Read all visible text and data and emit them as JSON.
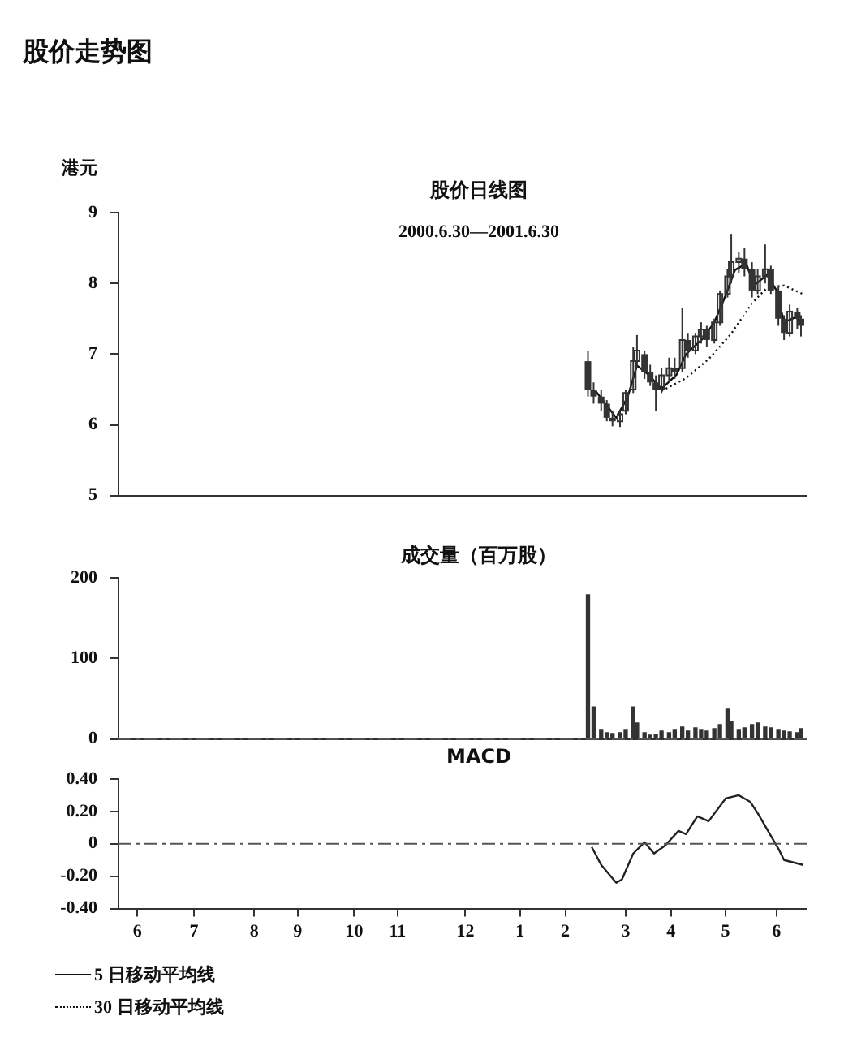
{
  "chart_data": [
    {
      "type": "candlestick",
      "title": "股价日线图",
      "subtitle": "2000.6.30—2001.6.30",
      "ylabel": "港元",
      "annotations": [
        "股价走势图"
      ],
      "color": "#333333",
      "marker": "none",
      "legend": "bottom",
      "tick_labels": "y",
      "xlim": [
        "2000-06-30",
        "2001-06-30"
      ],
      "ylim": [
        5,
        9
      ],
      "yticks": [
        5,
        6,
        7,
        8,
        9
      ],
      "x": [
        "2001-03-06",
        "2001-03-09",
        "2001-03-13",
        "2001-03-16",
        "2001-03-19",
        "2001-03-23",
        "2001-03-26",
        "2001-03-30",
        "2001-04-01",
        "2001-04-05",
        "2001-04-08",
        "2001-04-11",
        "2001-04-14",
        "2001-04-18",
        "2001-04-21",
        "2001-04-25",
        "2001-04-28",
        "2001-05-02",
        "2001-05-05",
        "2001-05-08",
        "2001-05-12",
        "2001-05-15",
        "2001-05-19",
        "2001-05-21",
        "2001-05-25",
        "2001-05-28",
        "2001-06-01",
        "2001-06-04",
        "2001-06-08",
        "2001-06-11",
        "2001-06-15",
        "2001-06-18",
        "2001-06-21",
        "2001-06-25",
        "2001-06-27"
      ],
      "ohlc": [
        [
          6.9,
          7.05,
          6.4,
          6.5
        ],
        [
          6.5,
          6.6,
          6.3,
          6.4
        ],
        [
          6.4,
          6.5,
          6.2,
          6.3
        ],
        [
          6.3,
          6.35,
          6.05,
          6.1
        ],
        [
          6.1,
          6.2,
          5.98,
          6.05
        ],
        [
          6.05,
          6.2,
          5.97,
          6.15
        ],
        [
          6.2,
          6.5,
          6.15,
          6.45
        ],
        [
          6.5,
          7.1,
          6.45,
          6.9
        ],
        [
          6.9,
          7.27,
          6.8,
          7.05
        ],
        [
          7.0,
          7.05,
          6.65,
          6.75
        ],
        [
          6.75,
          6.85,
          6.55,
          6.6
        ],
        [
          6.6,
          6.7,
          6.2,
          6.5
        ],
        [
          6.5,
          6.8,
          6.45,
          6.7
        ],
        [
          6.7,
          6.95,
          6.6,
          6.8
        ],
        [
          6.8,
          6.95,
          6.65,
          6.75
        ],
        [
          6.8,
          7.65,
          6.75,
          7.2
        ],
        [
          7.2,
          7.3,
          6.95,
          7.05
        ],
        [
          7.05,
          7.3,
          7.0,
          7.25
        ],
        [
          7.25,
          7.45,
          7.15,
          7.35
        ],
        [
          7.35,
          7.4,
          7.1,
          7.2
        ],
        [
          7.2,
          7.5,
          7.15,
          7.45
        ],
        [
          7.45,
          7.9,
          7.4,
          7.85
        ],
        [
          7.85,
          8.2,
          7.8,
          8.1
        ],
        [
          8.1,
          8.7,
          8.0,
          8.3
        ],
        [
          8.3,
          8.45,
          8.15,
          8.35
        ],
        [
          8.35,
          8.5,
          8.1,
          8.2
        ],
        [
          8.2,
          8.3,
          7.8,
          7.9
        ],
        [
          7.9,
          8.2,
          7.85,
          8.1
        ],
        [
          8.1,
          8.55,
          8.0,
          8.2
        ],
        [
          8.2,
          8.25,
          7.85,
          7.9
        ],
        [
          7.9,
          7.95,
          7.4,
          7.5
        ],
        [
          7.5,
          7.55,
          7.2,
          7.3
        ],
        [
          7.3,
          7.7,
          7.25,
          7.6
        ],
        [
          7.6,
          7.65,
          7.35,
          7.5
        ],
        [
          7.5,
          7.55,
          7.25,
          7.4
        ]
      ],
      "series": [
        {
          "name": "5 日移动平均线",
          "type": "line",
          "color": "#111111",
          "line_style": "solid",
          "x": [
            "2001-03-10",
            "2001-03-21",
            "2001-03-27",
            "2001-04-01",
            "2001-04-07",
            "2001-04-14",
            "2001-04-22",
            "2001-04-27",
            "2001-05-06",
            "2001-05-12",
            "2001-05-18",
            "2001-05-23",
            "2001-05-29",
            "2001-06-02",
            "2001-06-09",
            "2001-06-14",
            "2001-06-18",
            "2001-06-24",
            "2001-06-28"
          ],
          "values": [
            6.48,
            6.1,
            6.39,
            6.84,
            6.71,
            6.51,
            6.71,
            7.0,
            7.22,
            7.45,
            7.83,
            8.19,
            8.28,
            7.97,
            8.12,
            7.9,
            7.45,
            7.52,
            7.45
          ]
        },
        {
          "name": "30 日移动平均线",
          "type": "line",
          "color": "#111111",
          "line_style": "dotted",
          "x": [
            "2001-04-14",
            "2001-04-27",
            "2001-05-09",
            "2001-05-21",
            "2001-06-01",
            "2001-06-09",
            "2001-06-18",
            "2001-06-28"
          ],
          "values": [
            6.48,
            6.66,
            6.93,
            7.29,
            7.72,
            7.94,
            7.97,
            7.85
          ]
        }
      ]
    },
    {
      "type": "bar",
      "title": "成交量（百万股）",
      "color": "#333333",
      "tick_labels": "y",
      "xlim": [
        "2000-06-30",
        "2001-06-30"
      ],
      "ylim": [
        0,
        200
      ],
      "yticks": [
        0,
        100,
        200
      ],
      "x": [
        "2001-03-06",
        "2001-03-09",
        "2001-03-13",
        "2001-03-16",
        "2001-03-19",
        "2001-03-23",
        "2001-03-26",
        "2001-03-30",
        "2001-04-01",
        "2001-04-05",
        "2001-04-08",
        "2001-04-11",
        "2001-04-14",
        "2001-04-18",
        "2001-04-21",
        "2001-04-25",
        "2001-04-28",
        "2001-05-02",
        "2001-05-05",
        "2001-05-08",
        "2001-05-12",
        "2001-05-15",
        "2001-05-19",
        "2001-05-21",
        "2001-05-25",
        "2001-05-28",
        "2001-06-01",
        "2001-06-04",
        "2001-06-08",
        "2001-06-11",
        "2001-06-15",
        "2001-06-18",
        "2001-06-21",
        "2001-06-25",
        "2001-06-27"
      ],
      "values": [
        179,
        40,
        12,
        8,
        7,
        8,
        12,
        40,
        20,
        8,
        5,
        6,
        10,
        8,
        12,
        15,
        10,
        14,
        12,
        10,
        13,
        18,
        37,
        22,
        12,
        14,
        18,
        20,
        15,
        14,
        12,
        10,
        9,
        8,
        13
      ],
      "ref_lines": [
        {
          "axis": "y",
          "value": 0,
          "line_style": "dashed",
          "color": "#555555"
        }
      ]
    },
    {
      "type": "line",
      "title": "MACD",
      "color": "#222222",
      "marker": "none",
      "xlim": [
        "2000-06-30",
        "2001-06-30"
      ],
      "ylim": [
        -0.4,
        0.4
      ],
      "yticks": [
        {
          "value": -0.4,
          "label": "-0.40"
        },
        {
          "value": -0.2,
          "label": "-0.20"
        },
        0,
        {
          "value": 0.2,
          "label": "0.20"
        },
        {
          "value": 0.4,
          "label": "0.40"
        }
      ],
      "xticks": [
        {
          "value": "2000-07-10",
          "label": "6"
        },
        {
          "value": "2000-08-09",
          "label": "7"
        },
        {
          "value": "2000-09-10",
          "label": "8"
        },
        {
          "value": "2000-10-03",
          "label": "9"
        },
        {
          "value": "2000-11-02",
          "label": "10"
        },
        {
          "value": "2000-11-25",
          "label": "11"
        },
        {
          "value": "2000-12-31",
          "label": "12"
        },
        {
          "value": "2001-01-29",
          "label": "1"
        },
        {
          "value": "2001-02-22",
          "label": "2"
        },
        {
          "value": "2001-03-26",
          "label": "3"
        },
        {
          "value": "2001-04-19",
          "label": "4"
        },
        {
          "value": "2001-05-18",
          "label": "5"
        },
        {
          "value": "2001-06-14",
          "label": "6"
        }
      ],
      "x": [
        "2001-03-08",
        "2001-03-13",
        "2001-03-21",
        "2001-03-24",
        "2001-03-30",
        "2001-04-05",
        "2001-04-10",
        "2001-04-16",
        "2001-04-23",
        "2001-04-27",
        "2001-05-03",
        "2001-05-09",
        "2001-05-18",
        "2001-05-25",
        "2001-05-31",
        "2001-06-04",
        "2001-06-11",
        "2001-06-15",
        "2001-06-18",
        "2001-06-28"
      ],
      "values": [
        -0.02,
        -0.13,
        -0.24,
        -0.22,
        -0.06,
        0.01,
        -0.06,
        -0.01,
        0.08,
        0.06,
        0.17,
        0.14,
        0.28,
        0.3,
        0.26,
        0.19,
        0.05,
        -0.03,
        -0.1,
        -0.13
      ],
      "ref_lines": [
        {
          "axis": "y",
          "value": 0,
          "line_style": "dashed",
          "color": "#555555"
        }
      ]
    }
  ]
}
